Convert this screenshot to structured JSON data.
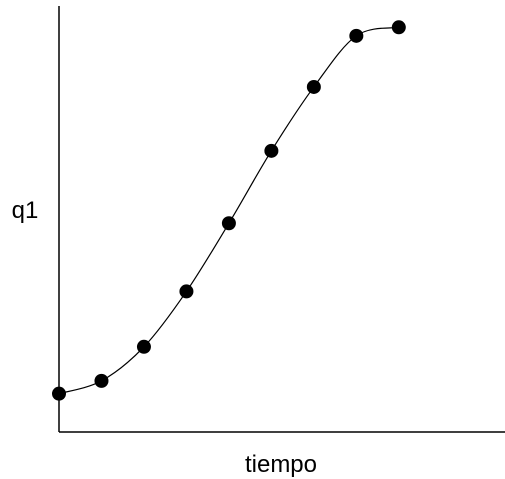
{
  "chart_data": {
    "type": "scatter",
    "xlabel": "tiempo",
    "ylabel": "q1",
    "xlim": [
      0,
      10.5
    ],
    "ylim": [
      0,
      10
    ],
    "grid": false,
    "legend": "none",
    "series": [
      {
        "x": [
          0,
          1,
          2,
          3,
          4,
          5,
          6,
          7,
          8
        ],
        "y": [
          0.9,
          1.2,
          2.0,
          3.3,
          4.9,
          6.6,
          8.1,
          9.3,
          9.5
        ]
      }
    ],
    "smooth_line": true,
    "colors": {
      "marker": "#000000",
      "line": "#000000",
      "frame": "#000000"
    }
  }
}
